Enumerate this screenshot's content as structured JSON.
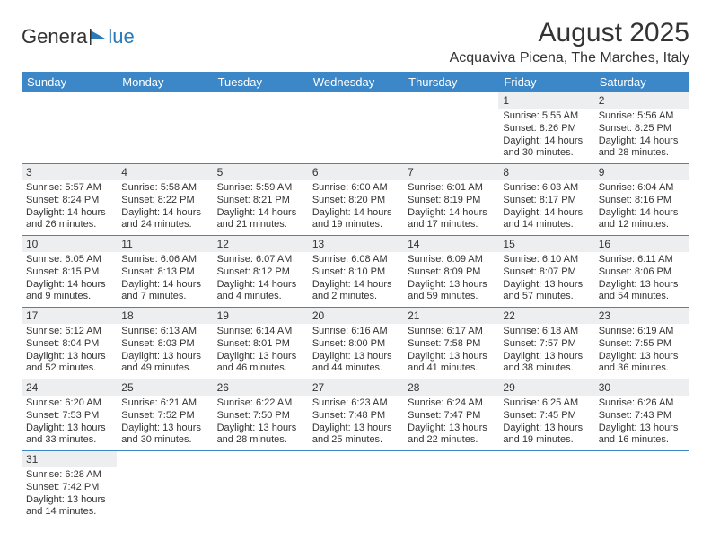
{
  "logo": {
    "part1": "Genera",
    "part2": "lue"
  },
  "title": "August 2025",
  "location": "Acquaviva Picena, The Marches, Italy",
  "colors": {
    "header_bg": "#3b87c8",
    "header_text": "#ffffff",
    "daynum_bg": "#eceeef",
    "border": "#3b87c8",
    "text": "#333333",
    "logo_accent": "#2a7ab9"
  },
  "weekdays": [
    "Sunday",
    "Monday",
    "Tuesday",
    "Wednesday",
    "Thursday",
    "Friday",
    "Saturday"
  ],
  "weeks": [
    [
      null,
      null,
      null,
      null,
      null,
      {
        "n": "1",
        "sunrise": "Sunrise: 5:55 AM",
        "sunset": "Sunset: 8:26 PM",
        "day1": "Daylight: 14 hours",
        "day2": "and 30 minutes."
      },
      {
        "n": "2",
        "sunrise": "Sunrise: 5:56 AM",
        "sunset": "Sunset: 8:25 PM",
        "day1": "Daylight: 14 hours",
        "day2": "and 28 minutes."
      }
    ],
    [
      {
        "n": "3",
        "sunrise": "Sunrise: 5:57 AM",
        "sunset": "Sunset: 8:24 PM",
        "day1": "Daylight: 14 hours",
        "day2": "and 26 minutes."
      },
      {
        "n": "4",
        "sunrise": "Sunrise: 5:58 AM",
        "sunset": "Sunset: 8:22 PM",
        "day1": "Daylight: 14 hours",
        "day2": "and 24 minutes."
      },
      {
        "n": "5",
        "sunrise": "Sunrise: 5:59 AM",
        "sunset": "Sunset: 8:21 PM",
        "day1": "Daylight: 14 hours",
        "day2": "and 21 minutes."
      },
      {
        "n": "6",
        "sunrise": "Sunrise: 6:00 AM",
        "sunset": "Sunset: 8:20 PM",
        "day1": "Daylight: 14 hours",
        "day2": "and 19 minutes."
      },
      {
        "n": "7",
        "sunrise": "Sunrise: 6:01 AM",
        "sunset": "Sunset: 8:19 PM",
        "day1": "Daylight: 14 hours",
        "day2": "and 17 minutes."
      },
      {
        "n": "8",
        "sunrise": "Sunrise: 6:03 AM",
        "sunset": "Sunset: 8:17 PM",
        "day1": "Daylight: 14 hours",
        "day2": "and 14 minutes."
      },
      {
        "n": "9",
        "sunrise": "Sunrise: 6:04 AM",
        "sunset": "Sunset: 8:16 PM",
        "day1": "Daylight: 14 hours",
        "day2": "and 12 minutes."
      }
    ],
    [
      {
        "n": "10",
        "sunrise": "Sunrise: 6:05 AM",
        "sunset": "Sunset: 8:15 PM",
        "day1": "Daylight: 14 hours",
        "day2": "and 9 minutes."
      },
      {
        "n": "11",
        "sunrise": "Sunrise: 6:06 AM",
        "sunset": "Sunset: 8:13 PM",
        "day1": "Daylight: 14 hours",
        "day2": "and 7 minutes."
      },
      {
        "n": "12",
        "sunrise": "Sunrise: 6:07 AM",
        "sunset": "Sunset: 8:12 PM",
        "day1": "Daylight: 14 hours",
        "day2": "and 4 minutes."
      },
      {
        "n": "13",
        "sunrise": "Sunrise: 6:08 AM",
        "sunset": "Sunset: 8:10 PM",
        "day1": "Daylight: 14 hours",
        "day2": "and 2 minutes."
      },
      {
        "n": "14",
        "sunrise": "Sunrise: 6:09 AM",
        "sunset": "Sunset: 8:09 PM",
        "day1": "Daylight: 13 hours",
        "day2": "and 59 minutes."
      },
      {
        "n": "15",
        "sunrise": "Sunrise: 6:10 AM",
        "sunset": "Sunset: 8:07 PM",
        "day1": "Daylight: 13 hours",
        "day2": "and 57 minutes."
      },
      {
        "n": "16",
        "sunrise": "Sunrise: 6:11 AM",
        "sunset": "Sunset: 8:06 PM",
        "day1": "Daylight: 13 hours",
        "day2": "and 54 minutes."
      }
    ],
    [
      {
        "n": "17",
        "sunrise": "Sunrise: 6:12 AM",
        "sunset": "Sunset: 8:04 PM",
        "day1": "Daylight: 13 hours",
        "day2": "and 52 minutes."
      },
      {
        "n": "18",
        "sunrise": "Sunrise: 6:13 AM",
        "sunset": "Sunset: 8:03 PM",
        "day1": "Daylight: 13 hours",
        "day2": "and 49 minutes."
      },
      {
        "n": "19",
        "sunrise": "Sunrise: 6:14 AM",
        "sunset": "Sunset: 8:01 PM",
        "day1": "Daylight: 13 hours",
        "day2": "and 46 minutes."
      },
      {
        "n": "20",
        "sunrise": "Sunrise: 6:16 AM",
        "sunset": "Sunset: 8:00 PM",
        "day1": "Daylight: 13 hours",
        "day2": "and 44 minutes."
      },
      {
        "n": "21",
        "sunrise": "Sunrise: 6:17 AM",
        "sunset": "Sunset: 7:58 PM",
        "day1": "Daylight: 13 hours",
        "day2": "and 41 minutes."
      },
      {
        "n": "22",
        "sunrise": "Sunrise: 6:18 AM",
        "sunset": "Sunset: 7:57 PM",
        "day1": "Daylight: 13 hours",
        "day2": "and 38 minutes."
      },
      {
        "n": "23",
        "sunrise": "Sunrise: 6:19 AM",
        "sunset": "Sunset: 7:55 PM",
        "day1": "Daylight: 13 hours",
        "day2": "and 36 minutes."
      }
    ],
    [
      {
        "n": "24",
        "sunrise": "Sunrise: 6:20 AM",
        "sunset": "Sunset: 7:53 PM",
        "day1": "Daylight: 13 hours",
        "day2": "and 33 minutes."
      },
      {
        "n": "25",
        "sunrise": "Sunrise: 6:21 AM",
        "sunset": "Sunset: 7:52 PM",
        "day1": "Daylight: 13 hours",
        "day2": "and 30 minutes."
      },
      {
        "n": "26",
        "sunrise": "Sunrise: 6:22 AM",
        "sunset": "Sunset: 7:50 PM",
        "day1": "Daylight: 13 hours",
        "day2": "and 28 minutes."
      },
      {
        "n": "27",
        "sunrise": "Sunrise: 6:23 AM",
        "sunset": "Sunset: 7:48 PM",
        "day1": "Daylight: 13 hours",
        "day2": "and 25 minutes."
      },
      {
        "n": "28",
        "sunrise": "Sunrise: 6:24 AM",
        "sunset": "Sunset: 7:47 PM",
        "day1": "Daylight: 13 hours",
        "day2": "and 22 minutes."
      },
      {
        "n": "29",
        "sunrise": "Sunrise: 6:25 AM",
        "sunset": "Sunset: 7:45 PM",
        "day1": "Daylight: 13 hours",
        "day2": "and 19 minutes."
      },
      {
        "n": "30",
        "sunrise": "Sunrise: 6:26 AM",
        "sunset": "Sunset: 7:43 PM",
        "day1": "Daylight: 13 hours",
        "day2": "and 16 minutes."
      }
    ],
    [
      {
        "n": "31",
        "sunrise": "Sunrise: 6:28 AM",
        "sunset": "Sunset: 7:42 PM",
        "day1": "Daylight: 13 hours",
        "day2": "and 14 minutes."
      },
      null,
      null,
      null,
      null,
      null,
      null
    ]
  ]
}
